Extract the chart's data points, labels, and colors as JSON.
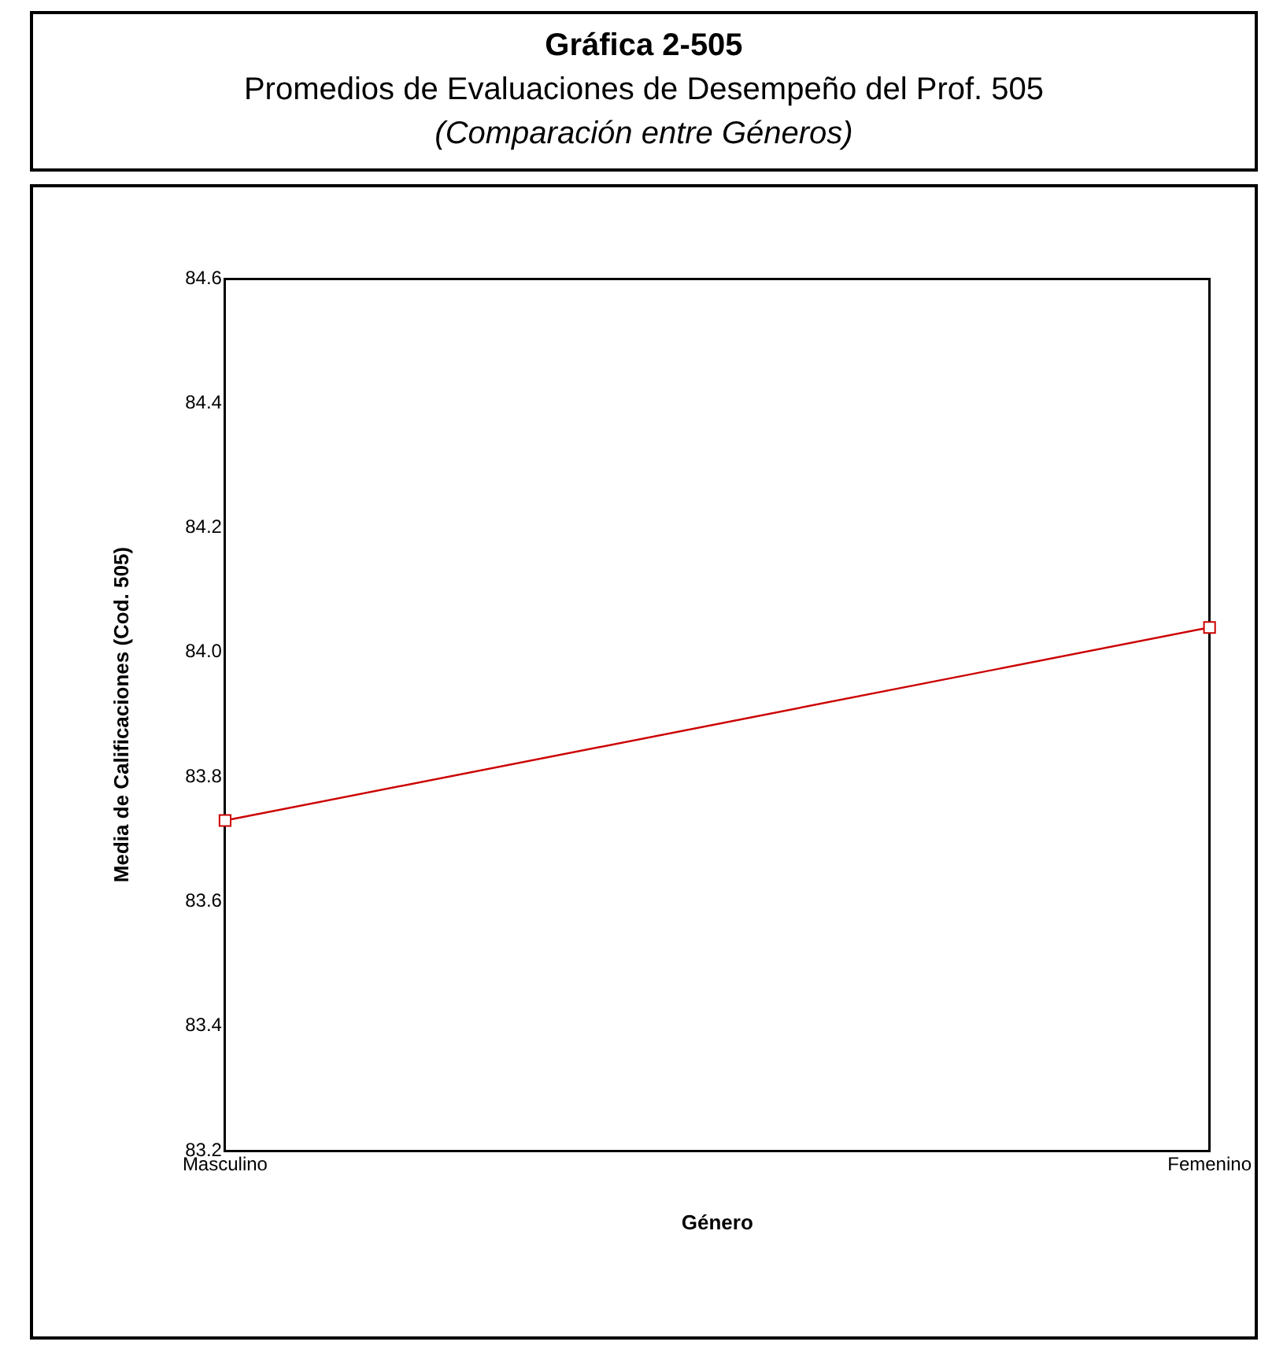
{
  "chart_data": {
    "type": "line",
    "title": "Gráfica 2-505",
    "subtitle": "Promedios de Evaluaciones de Desempeño del Prof. 505\n(Comparación entre Géneros)",
    "xlabel": "Género",
    "ylabel": "Media de Calificaciones (Cod. 505)",
    "categories": [
      "Masculino",
      "Femenino"
    ],
    "series": [
      {
        "color": "#cc0000",
        "values": [
          83.73,
          84.04
        ]
      }
    ],
    "ylim": [
      83.2,
      84.6
    ],
    "yticks": [
      83.2,
      83.4,
      83.6,
      83.8,
      {
        "value": 84,
        "label": "84.0"
      },
      84.2,
      84.4,
      84.6
    ],
    "legend": false,
    "marker": "square",
    "line_style": "solid"
  }
}
